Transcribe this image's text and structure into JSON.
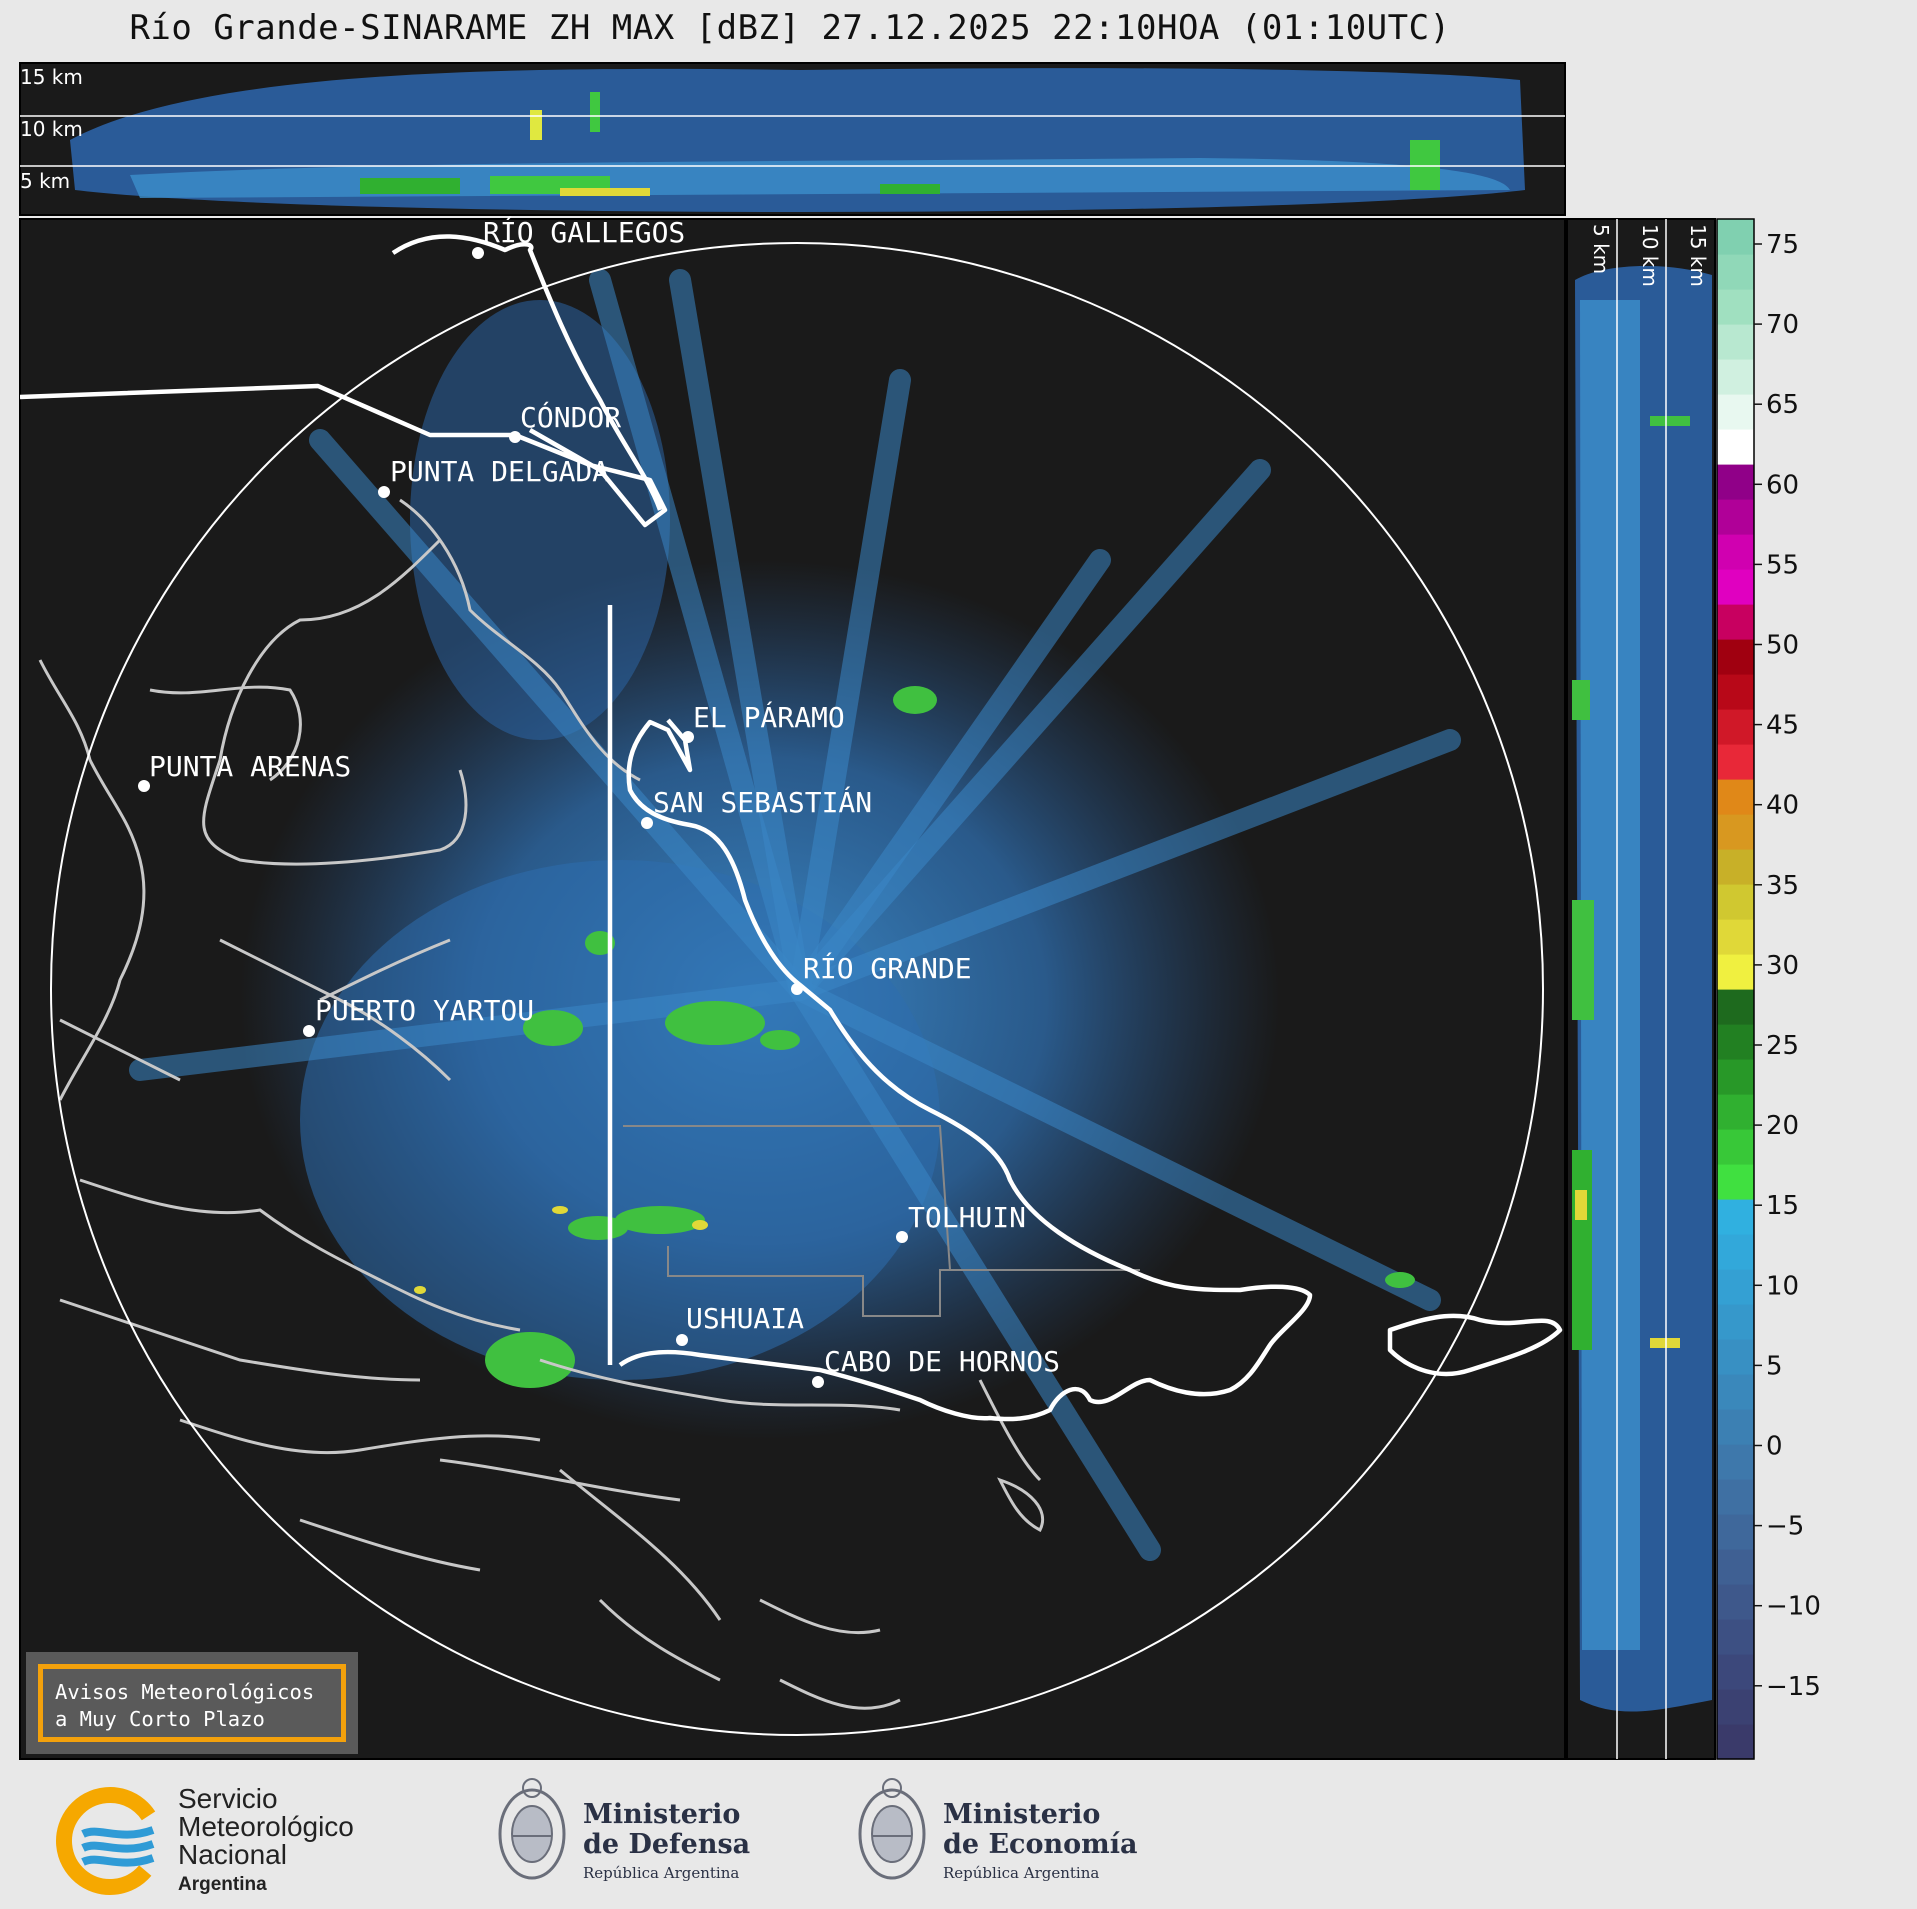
{
  "title": "Río Grande-SINARAME ZH MAX [dBZ] 27.12.2025 22:10HOA (01:10UTC)",
  "top_panel": {
    "altitudes": [
      "15 km",
      "10 km",
      "5 km"
    ]
  },
  "side_panel": {
    "altitudes": [
      "5 km",
      "10 km",
      "15 km"
    ]
  },
  "colorbar": {
    "ticks": [
      "75",
      "70",
      "65",
      "60",
      "55",
      "50",
      "45",
      "40",
      "35",
      "30",
      "25",
      "20",
      "15",
      "10",
      "5",
      "0",
      "−5",
      "−10",
      "−15"
    ],
    "colors": [
      "#3a3a6a",
      "#3b4172",
      "#3c487b",
      "#3d5083",
      "#3e588b",
      "#3f6093",
      "#3f689b",
      "#3f70a3",
      "#3e78ab",
      "#3c80b3",
      "#3a88bb",
      "#3890c3",
      "#3698cb",
      "#34a0d3",
      "#32a8da",
      "#30b0e0",
      "#40e040",
      "#38c838",
      "#30b030",
      "#289828",
      "#228022",
      "#1e6a1e",
      "#f0f040",
      "#e0d838",
      "#d0c830",
      "#c8b028",
      "#d89820",
      "#e08818",
      "#e82838",
      "#d01828",
      "#b80818",
      "#a00010",
      "#c80060",
      "#e000c0",
      "#d000b0",
      "#b00098",
      "#900088",
      "#ffffff",
      "#e8f8f0",
      "#d0f0e0",
      "#b8e8d0",
      "#a0e0c0",
      "#90d8b8",
      "#80d0b0"
    ]
  },
  "cities": [
    {
      "name": "RÍO GALLEGOS"
    },
    {
      "name": "CÓNDOR"
    },
    {
      "name": "PUNTA DELGADA"
    },
    {
      "name": "EL PÁRAMO"
    },
    {
      "name": "PUNTA ARENAS"
    },
    {
      "name": "SAN SEBASTIÁN"
    },
    {
      "name": "RÍO GRANDE"
    },
    {
      "name": "PUERTO YARTOU"
    },
    {
      "name": "TOLHUIN"
    },
    {
      "name": "USHUAIA"
    },
    {
      "name": "CABO DE HORNOS"
    }
  ],
  "badge": {
    "line1": "Avisos Meteorológicos",
    "line2": "a Muy Corto Plazo"
  },
  "logos": {
    "smn": {
      "line1": "Servicio",
      "line2": "Meteorológico",
      "line3": "Nacional",
      "line4": "Argentina"
    },
    "defensa": {
      "line1": "Ministerio",
      "line2": "de Defensa",
      "line3": "República Argentina"
    },
    "economia": {
      "line1": "Ministerio",
      "line2": "de Economía",
      "line3": "República Argentina"
    }
  }
}
